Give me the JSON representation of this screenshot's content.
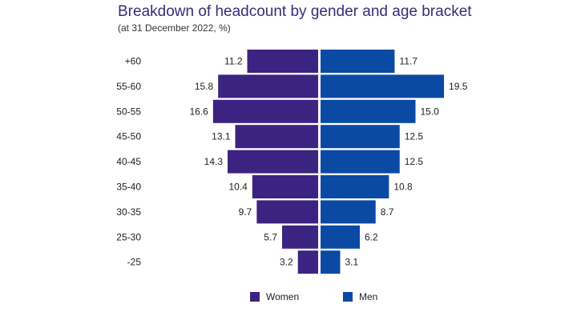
{
  "header": {
    "title": "Breakdown of headcount by gender and age bracket",
    "subtitle": "(at 31 December 2022, %)"
  },
  "colors": {
    "women": "#3d2381",
    "men": "#0a4aa3"
  },
  "chart_data": {
    "type": "bar",
    "orientation": "horizontal-diverging",
    "title": "Breakdown of headcount by gender and age bracket",
    "subtitle": "(at 31 December 2022, %)",
    "categories": [
      "+60",
      "55-60",
      "50-55",
      "45-50",
      "40-45",
      "35-40",
      "30-35",
      "25-30",
      "-25"
    ],
    "series": [
      {
        "name": "Women",
        "values": [
          11.2,
          15.8,
          16.6,
          13.1,
          14.3,
          10.4,
          9.7,
          5.7,
          3.2
        ]
      },
      {
        "name": "Men",
        "values": [
          11.7,
          19.5,
          15.0,
          12.5,
          12.5,
          10.8,
          8.7,
          6.2,
          3.1
        ]
      }
    ],
    "value_labels": {
      "Women": [
        "11.2",
        "15.8",
        "16.6",
        "13.1",
        "14.3",
        "10.4",
        "9.7",
        "5.7",
        "3.2"
      ],
      "Men": [
        "11.7",
        "19.5",
        "15.0",
        "12.5",
        "12.5",
        "10.8",
        "8.7",
        "6.2",
        "3.1"
      ]
    },
    "xlabel": "",
    "ylabel": "",
    "xlim": [
      0,
      20
    ],
    "grid": false,
    "legend": "bottom-center"
  },
  "legend": {
    "women_label": "Women",
    "men_label": "Men"
  }
}
